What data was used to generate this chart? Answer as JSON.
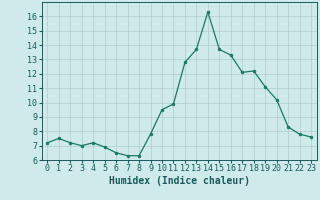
{
  "x": [
    0,
    1,
    2,
    3,
    4,
    5,
    6,
    7,
    8,
    9,
    10,
    11,
    12,
    13,
    14,
    15,
    16,
    17,
    18,
    19,
    20,
    21,
    22,
    23
  ],
  "y": [
    7.2,
    7.5,
    7.2,
    7.0,
    7.2,
    6.9,
    6.5,
    6.3,
    6.3,
    7.8,
    9.5,
    9.9,
    12.8,
    13.7,
    16.3,
    13.7,
    13.3,
    12.1,
    12.2,
    11.1,
    10.2,
    8.3,
    7.8,
    7.6
  ],
  "line_color": "#1a7a5e",
  "marker": "o",
  "marker_size": 2.0,
  "bg_color": "#ceeaea",
  "grid_color": "#b0cccc",
  "xlabel": "Humidex (Indice chaleur)",
  "ylim": [
    6,
    17
  ],
  "xlim": [
    -0.5,
    23.5
  ],
  "yticks": [
    6,
    7,
    8,
    9,
    10,
    11,
    12,
    13,
    14,
    15,
    16
  ],
  "xticks": [
    0,
    1,
    2,
    3,
    4,
    5,
    6,
    7,
    8,
    9,
    10,
    11,
    12,
    13,
    14,
    15,
    16,
    17,
    18,
    19,
    20,
    21,
    22,
    23
  ],
  "tick_color": "#1a5a5a",
  "label_color": "#1a5a5a",
  "label_fontsize": 7,
  "tick_fontsize": 6
}
